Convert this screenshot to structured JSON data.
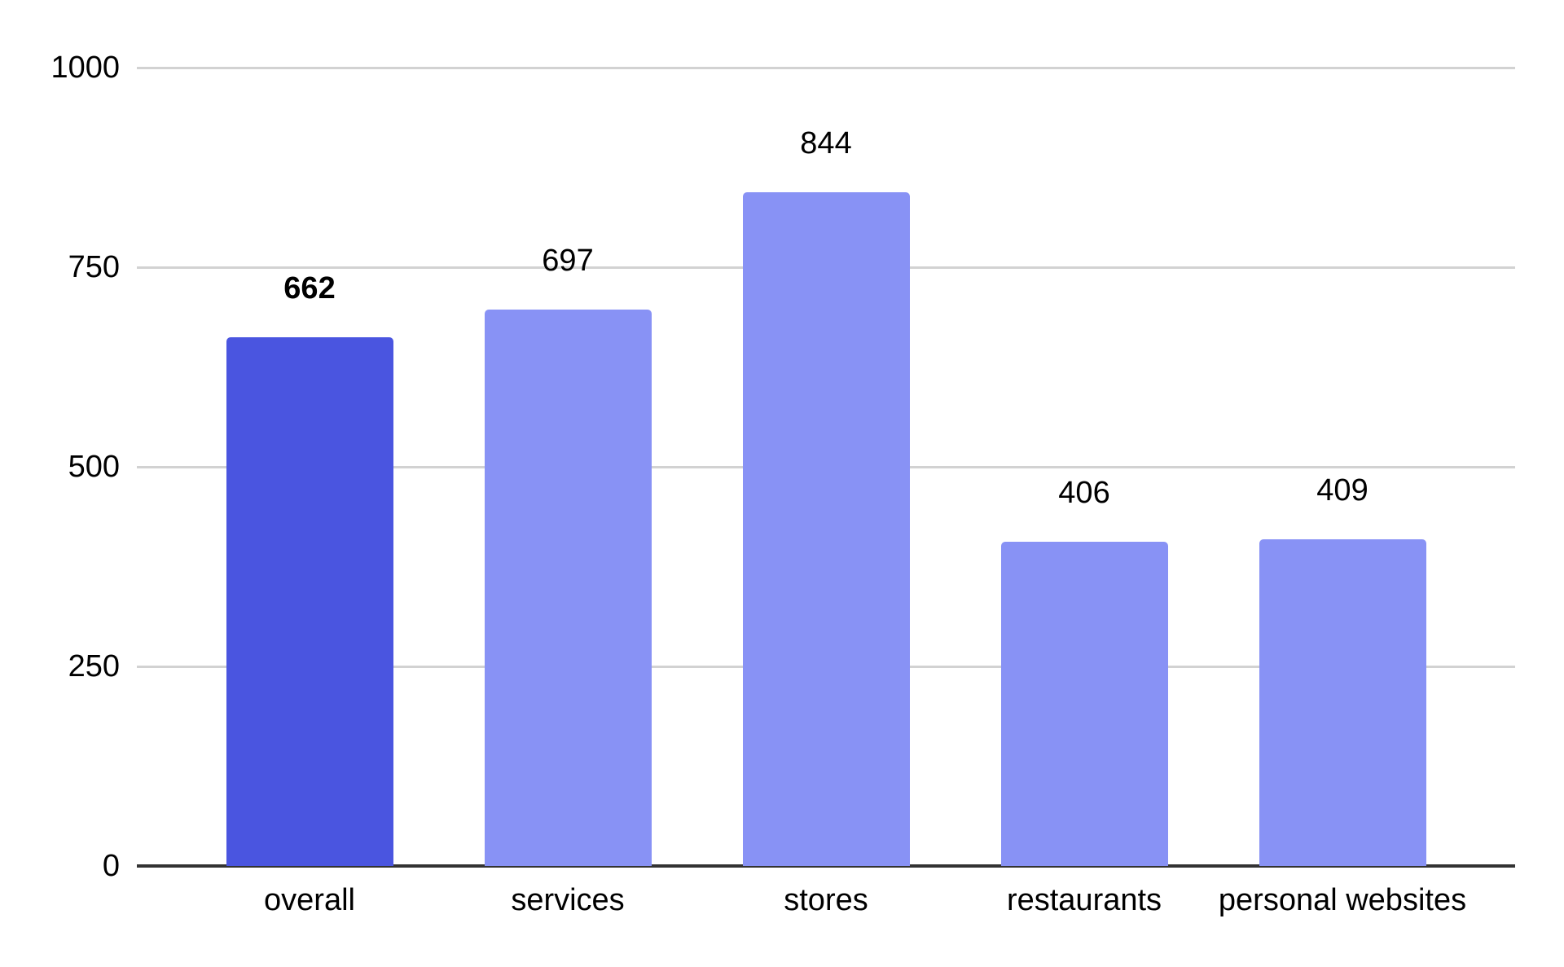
{
  "chart_data": {
    "type": "bar",
    "title": "",
    "xlabel": "",
    "ylabel": "",
    "categories": [
      "overall",
      "services",
      "stores",
      "restaurants",
      "personal websites"
    ],
    "values": [
      662,
      697,
      844,
      406,
      409
    ],
    "data_labels": [
      "662",
      "697",
      "844",
      "406",
      "409"
    ],
    "data_label_bold": [
      true,
      false,
      false,
      false,
      false
    ],
    "bar_colors": [
      "#4a55e0",
      "#8892f5",
      "#8892f5",
      "#8892f5",
      "#8892f5"
    ],
    "ylim": [
      0,
      1000
    ],
    "yticks": [
      0,
      250,
      500,
      750,
      1000
    ],
    "ytick_labels": [
      "0",
      "250",
      "500",
      "750",
      "1000"
    ],
    "grid": true,
    "legend_position": "none"
  },
  "style": {
    "background": "#ffffff",
    "text_color": "#000000",
    "gridline_color": "#d2d2d2",
    "axis_color": "#333333",
    "accent_dark": "#4a55e0",
    "accent_light": "#8892f5"
  }
}
